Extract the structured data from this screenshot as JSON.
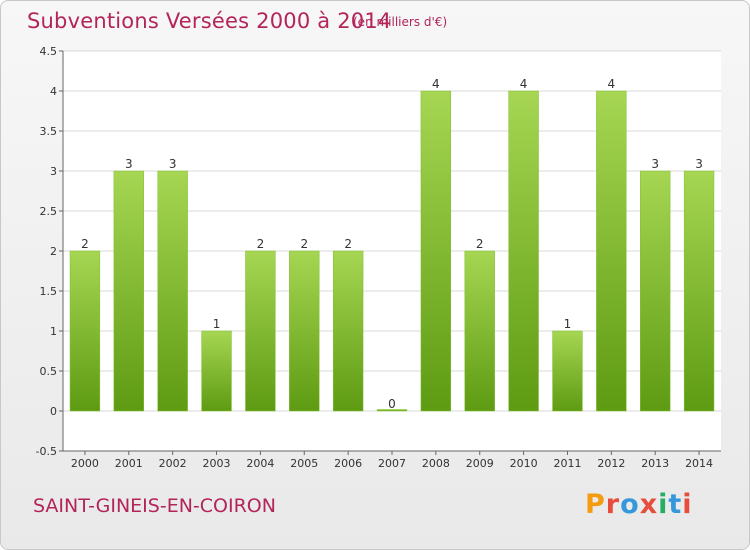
{
  "header": {
    "title": "Subventions Versées 2000 à 2014",
    "unit": "(en milliers d'€)"
  },
  "footer": {
    "commune": "SAINT-GINEIS-EN-COIRON",
    "logo": "Proxiti"
  },
  "colors": {
    "title": "#b3245a",
    "bar_light": "#a6d653",
    "bar_dark": "#5e9b12",
    "logo_letters": [
      "#f39c12",
      "#e74c3c",
      "#3498db",
      "#e74c3c",
      "#27ae60",
      "#3498db",
      "#e74c3c"
    ]
  },
  "chart_data": {
    "type": "bar",
    "categories": [
      "2000",
      "2001",
      "2002",
      "2003",
      "2004",
      "2005",
      "2006",
      "2007",
      "2008",
      "2009",
      "2010",
      "2011",
      "2012",
      "2013",
      "2014"
    ],
    "values": [
      2,
      3,
      3,
      1,
      2,
      2,
      2,
      0,
      4,
      2,
      4,
      1,
      4,
      3,
      3
    ],
    "ylim": [
      -0.5,
      4.5
    ],
    "yticks": [
      "-0.5",
      "0",
      "0.5",
      "1",
      "1.5",
      "2",
      "2.5",
      "3",
      "3.5",
      "4",
      "4.5"
    ],
    "grid": true
  }
}
